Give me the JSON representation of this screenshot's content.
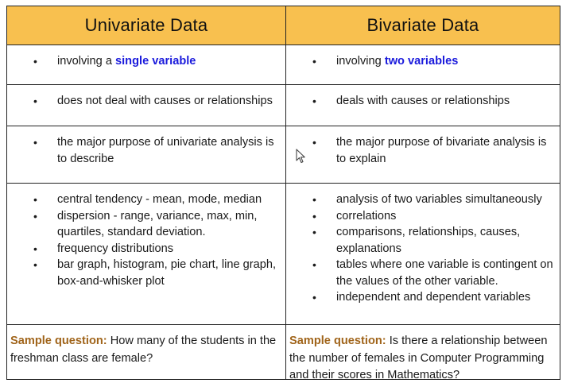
{
  "headers": {
    "univariate": "Univariate Data",
    "bivariate": "Bivariate Data"
  },
  "rows": [
    {
      "univariate": [
        {
          "pre": "involving a ",
          "hl": "single variable"
        }
      ],
      "bivariate": [
        {
          "pre": "involving ",
          "hl": "two variables"
        }
      ]
    },
    {
      "univariate": [
        {
          "text": "does not deal with causes or relationships"
        }
      ],
      "bivariate": [
        {
          "text": "deals with causes or relationships"
        }
      ]
    },
    {
      "univariate": [
        {
          "text": "the major purpose of univariate analysis is to describe"
        }
      ],
      "bivariate": [
        {
          "text": "the major purpose of bivariate analysis is to explain"
        }
      ]
    },
    {
      "univariate": [
        {
          "text": "central tendency - mean, mode, median"
        },
        {
          "text": "dispersion - range, variance, max, min, quartiles, standard deviation."
        },
        {
          "text": "frequency distributions"
        },
        {
          "text": "bar graph, histogram, pie chart, line graph, box-and-whisker plot"
        }
      ],
      "bivariate": [
        {
          "text": "analysis of two variables simultaneously"
        },
        {
          "text": "correlations"
        },
        {
          "text": "comparisons, relationships, causes, explanations"
        },
        {
          "text": "tables where one variable is contingent on the values of the other variable."
        },
        {
          "text": "independent and dependent variables"
        }
      ]
    }
  ],
  "samples": {
    "label": "Sample question:",
    "univariate": " How many of the students in the freshman class are female?",
    "bivariate": " Is there a relationship between the number of females in Computer Programming and their scores in Mathematics?"
  },
  "colors": {
    "header_bg": "#f8c04f",
    "highlight": "#1a1adc",
    "sample_label": "#a0641a"
  },
  "icons": {
    "bullet": "•",
    "cursor": "mouse-pointer-icon"
  }
}
